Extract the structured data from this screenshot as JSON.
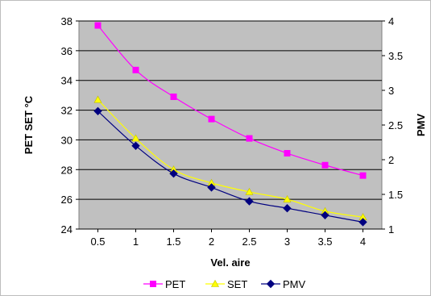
{
  "chart_data": {
    "type": "line",
    "title": "",
    "xlabel": "Vel. aire",
    "ylabel": "PET SET °C",
    "y2label": "PMV",
    "x": [
      0.5,
      1,
      1.5,
      2,
      2.5,
      3,
      3.5,
      4
    ],
    "x_ticks": [
      "0.5",
      "1",
      "1.5",
      "2",
      "2.5",
      "3",
      "3.5",
      "4"
    ],
    "ylim": [
      24,
      38
    ],
    "y_ticks": [
      "24",
      "26",
      "28",
      "30",
      "32",
      "34",
      "36",
      "38"
    ],
    "y2lim": [
      1,
      4
    ],
    "y2_ticks": [
      "1",
      "1.5",
      "2",
      "2.5",
      "3",
      "3.5",
      "4"
    ],
    "grid": "horizontal",
    "legend_position": "bottom",
    "plot_background": "#c0c0c0",
    "series": [
      {
        "name": "PET",
        "axis": "left",
        "color": "#ff00ff",
        "marker": "square",
        "values": [
          37.7,
          34.7,
          32.9,
          31.4,
          30.1,
          29.1,
          28.3,
          27.6
        ]
      },
      {
        "name": "SET",
        "axis": "left",
        "color": "#ffff00",
        "marker": "triangle",
        "values": [
          32.7,
          30.1,
          28.0,
          27.1,
          26.5,
          26.0,
          25.2,
          24.8
        ]
      },
      {
        "name": "PMV",
        "axis": "right",
        "color": "#000080",
        "marker": "diamond",
        "values": [
          2.7,
          2.2,
          1.8,
          1.6,
          1.4,
          1.3,
          1.2,
          1.1
        ]
      }
    ]
  }
}
